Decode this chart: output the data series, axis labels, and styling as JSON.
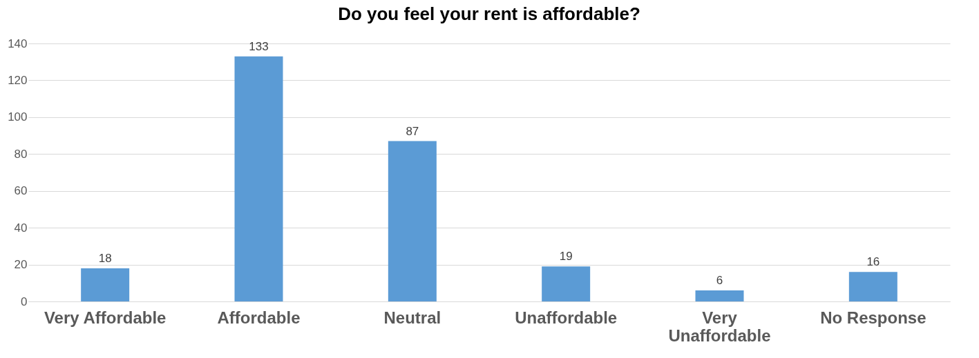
{
  "chart_data": {
    "type": "bar",
    "title": "Do you feel your rent is affordable?",
    "categories": [
      "Very Affordable",
      "Affordable",
      "Neutral",
      "Unaffordable",
      "Very Unaffordable",
      "No Response"
    ],
    "values": [
      18,
      133,
      87,
      19,
      6,
      16
    ],
    "color": "#5b9bd5",
    "ylim": [
      0,
      140
    ],
    "yticks": [
      0,
      20,
      40,
      60,
      80,
      100,
      120,
      140
    ],
    "grid": "y",
    "data_labels": true
  }
}
